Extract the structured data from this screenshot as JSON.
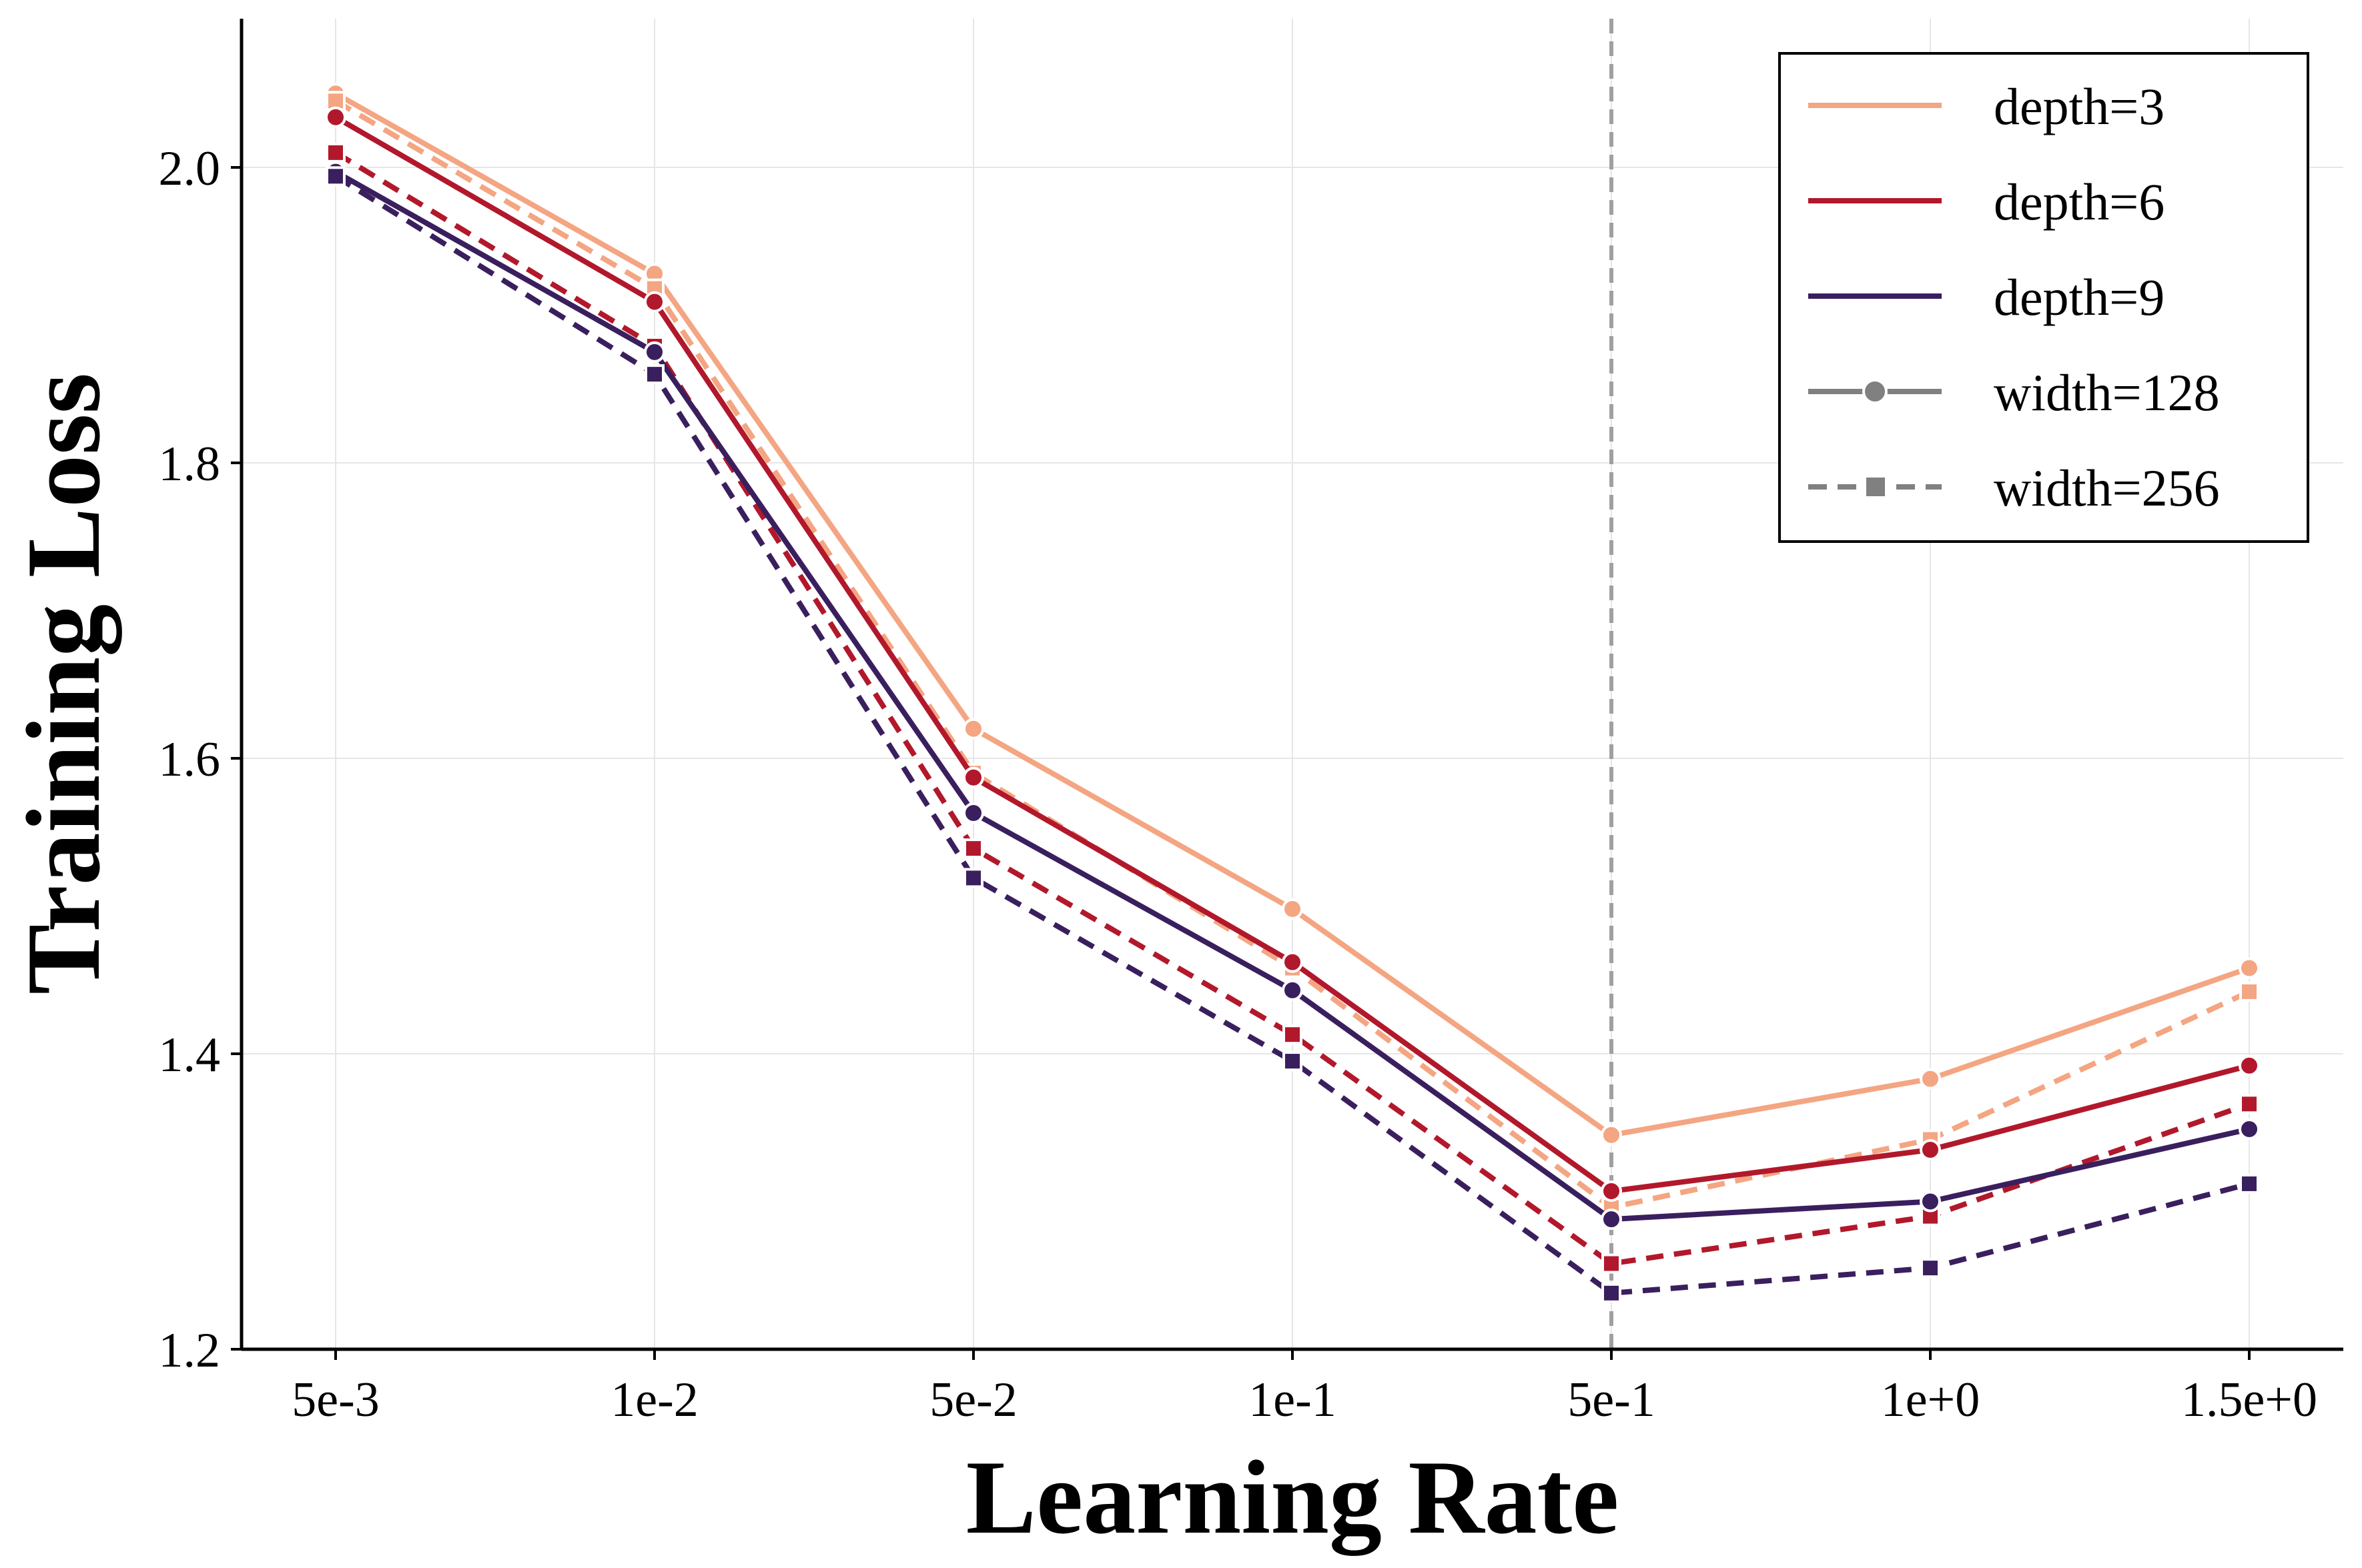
{
  "chart_data": {
    "type": "line",
    "title": "",
    "xlabel": "Learning Rate",
    "ylabel": "Training Loss",
    "categories": [
      "5e-3",
      "1e-2",
      "5e-2",
      "1e-1",
      "5e-1",
      "1e+0",
      "1.5e+0"
    ],
    "yticks": [
      "1.2",
      "1.4",
      "1.6",
      "1.8",
      "2.0"
    ],
    "ylim": [
      1.2,
      2.1
    ],
    "grid": true,
    "reference_line": {
      "category": "5e-1",
      "style": "dashed",
      "color": "#a0a0a0"
    },
    "legend": {
      "placement": "top-right",
      "entries": [
        {
          "label": "depth=3",
          "color": "#f4a582",
          "style": "solid",
          "marker": "none"
        },
        {
          "label": "depth=6",
          "color": "#b2182b",
          "style": "solid",
          "marker": "none"
        },
        {
          "label": "depth=9",
          "color": "#3a1f5e",
          "style": "solid",
          "marker": "none"
        },
        {
          "label": "width=128",
          "color": "#808080",
          "style": "solid",
          "marker": "circle"
        },
        {
          "label": "width=256",
          "color": "#808080",
          "style": "dashed",
          "marker": "square"
        }
      ]
    },
    "series": [
      {
        "name": "depth=3, width=128",
        "color": "#f4a582",
        "style": "solid",
        "marker": "circle",
        "values": [
          2.05,
          1.928,
          1.62,
          1.498,
          1.345,
          1.383,
          1.458
        ]
      },
      {
        "name": "depth=3, width=256",
        "color": "#f4a582",
        "style": "dashed",
        "marker": "square",
        "values": [
          2.045,
          1.918,
          1.59,
          1.458,
          1.296,
          1.342,
          1.442
        ]
      },
      {
        "name": "depth=6, width=128",
        "color": "#b2182b",
        "style": "solid",
        "marker": "circle",
        "values": [
          2.034,
          1.909,
          1.587,
          1.462,
          1.307,
          1.335,
          1.392
        ]
      },
      {
        "name": "depth=6, width=256",
        "color": "#b2182b",
        "style": "dashed",
        "marker": "square",
        "values": [
          2.01,
          1.879,
          1.539,
          1.413,
          1.258,
          1.29,
          1.366
        ]
      },
      {
        "name": "depth=9, width=128",
        "color": "#3a1f5e",
        "style": "solid",
        "marker": "circle",
        "values": [
          1.997,
          1.875,
          1.563,
          1.443,
          1.288,
          1.3,
          1.349
        ]
      },
      {
        "name": "depth=9, width=256",
        "color": "#3a1f5e",
        "style": "dashed",
        "marker": "square",
        "values": [
          1.994,
          1.86,
          1.519,
          1.395,
          1.238,
          1.255,
          1.312
        ]
      }
    ]
  }
}
